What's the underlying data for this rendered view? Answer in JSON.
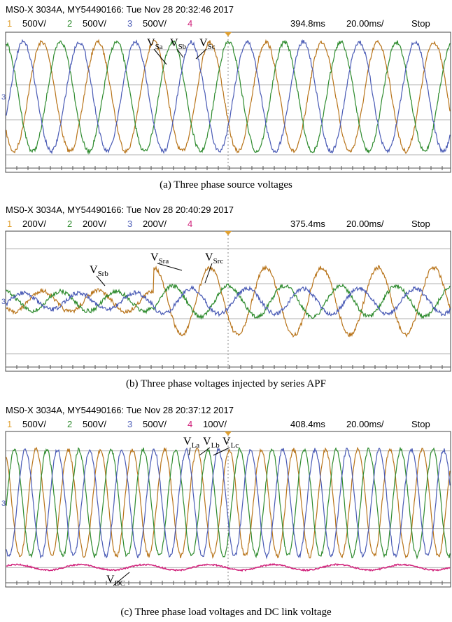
{
  "panels": [
    {
      "header": "MS0-X 3034A, MY54490166: Tue Nov 28 20:32:46 2017",
      "channels": [
        {
          "number": "1",
          "scale": "500V/"
        },
        {
          "number": "2",
          "scale": "500V/"
        },
        {
          "number": "3",
          "scale": "500V/"
        },
        {
          "number": "4"
        }
      ],
      "position": "394.8ms",
      "timebase": "20.00ms/",
      "status": "Stop",
      "labels": [
        {
          "main": "V",
          "sub": "Sa"
        },
        {
          "main": "V",
          "sub": "Sb"
        },
        {
          "main": "V",
          "sub": "Sc"
        }
      ],
      "caption": "(a) Three phase source voltages"
    },
    {
      "header": "MS0-X 3034A, MY54490166: Tue Nov 28 20:40:29 2017",
      "channels": [
        {
          "number": "1",
          "scale": "200V/"
        },
        {
          "number": "2",
          "scale": "200V/"
        },
        {
          "number": "3",
          "scale": "200V/"
        },
        {
          "number": "4"
        }
      ],
      "position": "375.4ms",
      "timebase": "20.00ms/",
      "status": "Stop",
      "labels": [
        {
          "main": "V",
          "sub": "Srb"
        },
        {
          "main": "V",
          "sub": "Sra"
        },
        {
          "main": "V",
          "sub": "Src"
        }
      ],
      "caption": "(b) Three phase voltages injected by series APF"
    },
    {
      "header": "MS0-X 3034A, MY54490166: Tue Nov 28 20:37:12 2017",
      "channels": [
        {
          "number": "1",
          "scale": "500V/"
        },
        {
          "number": "2",
          "scale": "500V/"
        },
        {
          "number": "3",
          "scale": "500V/"
        },
        {
          "number": "4",
          "scale": "100V/"
        }
      ],
      "position": "408.4ms",
      "timebase": "20.00ms/",
      "status": "Stop",
      "labels": [
        {
          "main": "V",
          "sub": "La"
        },
        {
          "main": "V",
          "sub": "Lb"
        },
        {
          "main": "V",
          "sub": "Lc"
        },
        {
          "main": "V",
          "sub": "DC"
        }
      ],
      "caption": "(c) Three phase load voltages and DC link voltage"
    }
  ]
}
